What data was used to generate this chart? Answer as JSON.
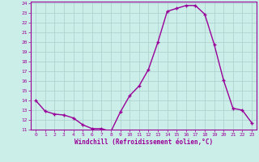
{
  "hours": [
    0,
    1,
    2,
    3,
    4,
    5,
    6,
    7,
    8,
    9,
    10,
    11,
    12,
    13,
    14,
    15,
    16,
    17,
    18,
    19,
    20,
    21,
    22,
    23
  ],
  "windchill": [
    14.0,
    12.9,
    12.6,
    12.5,
    12.2,
    11.5,
    11.1,
    11.1,
    10.8,
    12.8,
    14.5,
    15.5,
    17.2,
    20.0,
    23.2,
    23.5,
    23.8,
    23.8,
    22.9,
    19.8,
    16.1,
    13.2,
    13.0,
    11.7
  ],
  "line_color": "#990099",
  "bg_color": "#cceee8",
  "grid_color": "#aacccc",
  "xlabel": "Windchill (Refroidissement éolien,°C)",
  "ylim": [
    11,
    24
  ],
  "xlim": [
    -0.5,
    23.5
  ],
  "yticks": [
    11,
    12,
    13,
    14,
    15,
    16,
    17,
    18,
    19,
    20,
    21,
    22,
    23,
    24
  ],
  "xticks": [
    0,
    1,
    2,
    3,
    4,
    5,
    6,
    7,
    8,
    9,
    10,
    11,
    12,
    13,
    14,
    15,
    16,
    17,
    18,
    19,
    20,
    21,
    22,
    23
  ],
  "marker": "+",
  "marker_size": 3.5,
  "line_width": 1.0
}
